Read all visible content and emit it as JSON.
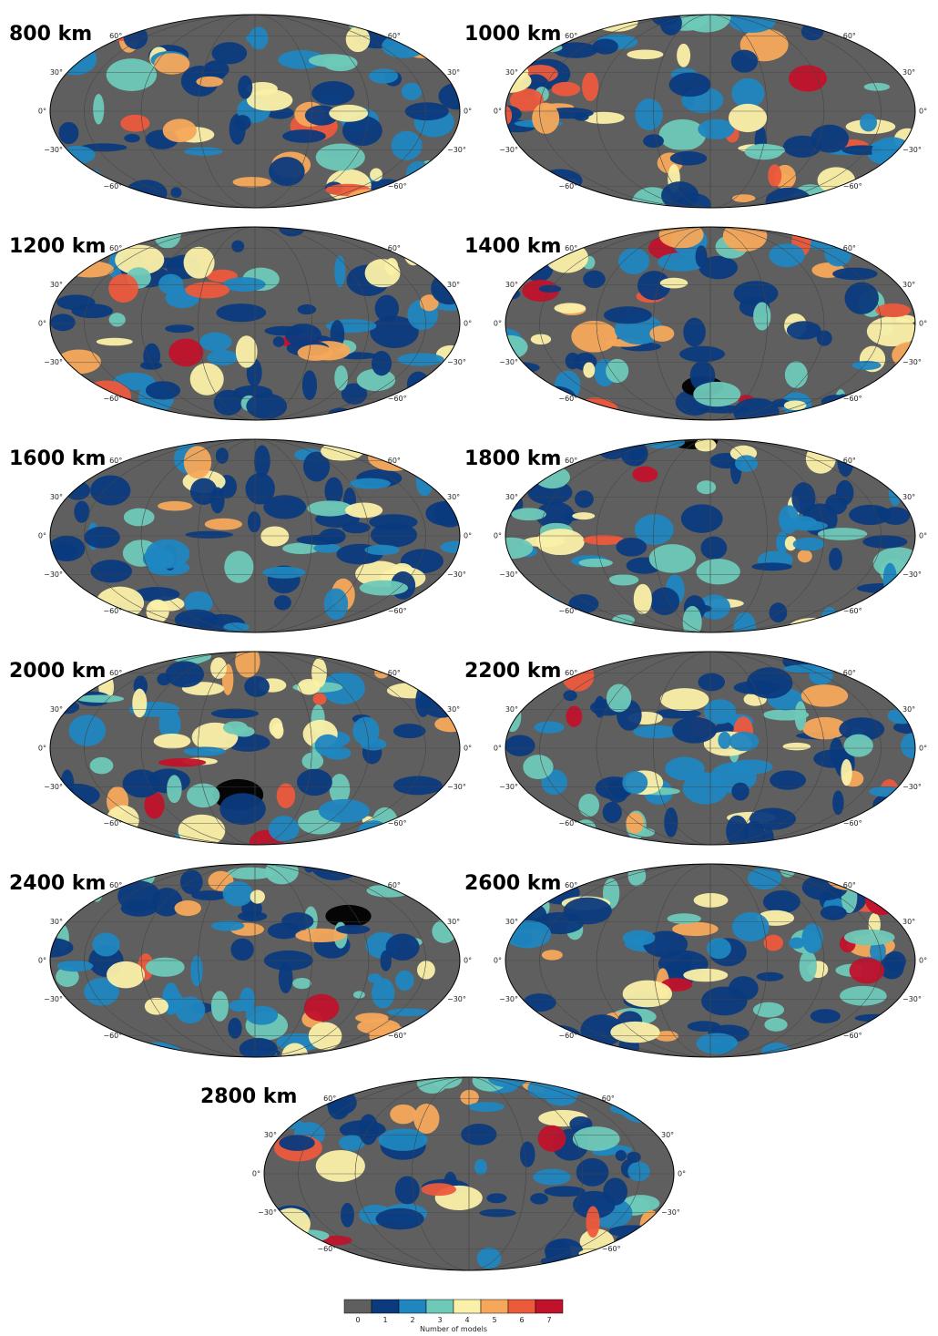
{
  "panels": [
    {
      "label": "800 km"
    },
    {
      "label": "1000 km"
    },
    {
      "label": "1200 km"
    },
    {
      "label": "1400 km"
    },
    {
      "label": "1600 km"
    },
    {
      "label": "1800 km"
    },
    {
      "label": "2000 km"
    },
    {
      "label": "2200 km"
    },
    {
      "label": "2400 km"
    },
    {
      "label": "2600 km"
    },
    {
      "label": "2800 km"
    }
  ],
  "lat_labels": [
    "60°",
    "30°",
    "0°",
    "−30°",
    "−60°"
  ],
  "legend": {
    "labels": [
      "0",
      "1",
      "2",
      "3",
      "4",
      "5",
      "6",
      "7"
    ],
    "colors": [
      "#5f5f5f",
      "#0b3a7e",
      "#1f86c0",
      "#6ec9b8",
      "#fbf0a8",
      "#f6a85a",
      "#ec5a3c",
      "#c1122c"
    ],
    "title": "Number of models"
  }
}
